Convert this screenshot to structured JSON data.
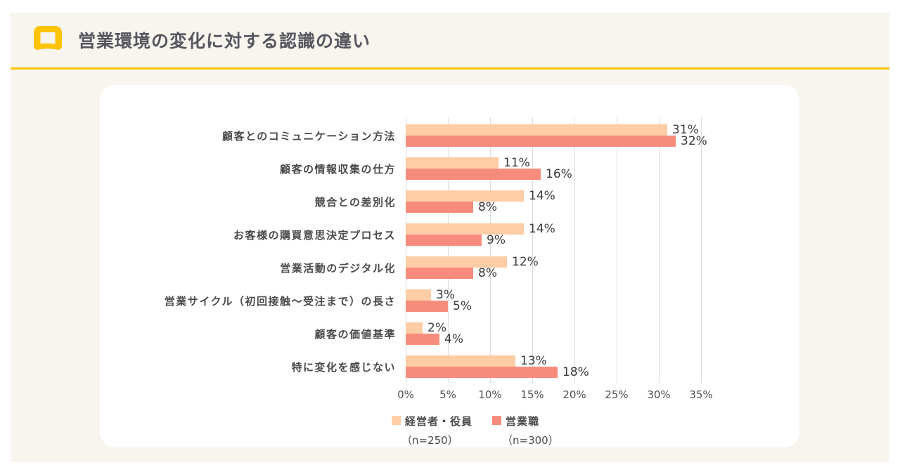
{
  "header": {
    "title": "営業環境の変化に対する認識の違い",
    "accent_color": "#fdc307"
  },
  "chart_data": {
    "type": "bar",
    "orientation": "horizontal",
    "title": "営業環境の変化に対する認識の違い",
    "categories": [
      "顧客とのコミュニケーション方法",
      "顧客の情報収集の仕方",
      "競合との差別化",
      "お客様の購買意思決定プロセス",
      "営業活動のデジタル化",
      "営業サイクル（初回接触～受注まで）の長さ",
      "顧客の価値基準",
      "特に変化を感じない"
    ],
    "series": [
      {
        "name": "経営者・役員",
        "sample": "（n=250）",
        "color": "#ffcda5",
        "values": [
          31,
          11,
          14,
          14,
          12,
          3,
          2,
          13
        ]
      },
      {
        "name": "営業職",
        "sample": "（n=300）",
        "color": "#f78c7d",
        "values": [
          32,
          16,
          8,
          9,
          8,
          5,
          4,
          18
        ]
      }
    ],
    "value_suffix": "%",
    "xlim": [
      0,
      35
    ],
    "x_ticks": [
      "0%",
      "5%",
      "10%",
      "15%",
      "20%",
      "25%",
      "30%",
      "35%"
    ],
    "grid": true,
    "legend_position": "bottom",
    "colors": {
      "gridline": "#dcdcdc",
      "value_label": "#3b3b3b",
      "category_label": "#4a4a4a"
    }
  }
}
